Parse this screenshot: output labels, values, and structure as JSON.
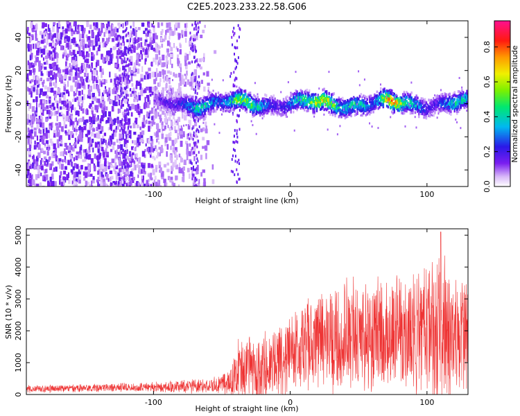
{
  "title": "C2E5.2023.233.22.58.G06",
  "chart_data": [
    {
      "type": "heatmap",
      "title": "C2E5.2023.233.22.58.G06",
      "xlabel": "Height of straight line (km)",
      "ylabel": "Frequency (Hz)",
      "xlim": [
        -193,
        130
      ],
      "ylim": [
        -50,
        50
      ],
      "xticks": [
        -100,
        0,
        100
      ],
      "xtick_labels": [
        "-100",
        "0",
        "100"
      ],
      "yticks": [
        -40,
        -20,
        0,
        20,
        40
      ],
      "ytick_labels": [
        "-40",
        "-20",
        "0",
        "20",
        "40"
      ],
      "colorbar": {
        "label": "Normalized spectral amplitude",
        "range": [
          0.0,
          0.95
        ],
        "ticks": [
          0.0,
          0.2,
          0.4,
          0.6,
          0.8
        ],
        "tick_labels": [
          "0.0",
          "0.2",
          "0.4",
          "0.6",
          "0.8"
        ],
        "colormap": "rainbow (white → violet → blue → cyan → green → yellow → orange → red → magenta)"
      },
      "features": [
        {
          "region": "x -193 to -100",
          "description": "broadband scattered noise across all frequencies, amplitude ~0.05-0.15"
        },
        {
          "region": "x -100 to 130",
          "description": "narrow signal band centered near 0 Hz, width ~±5 Hz, amplitude 0.3-0.95, peaks near x 20-30 and x 65-80"
        }
      ],
      "grid": false
    },
    {
      "type": "line",
      "xlabel": "Height of straight line (km)",
      "ylabel": "SNR (10 * v/v)",
      "xlim": [
        -193,
        130
      ],
      "ylim": [
        0,
        5200
      ],
      "xticks": [
        -100,
        0,
        100
      ],
      "xtick_labels": [
        "-100",
        "0",
        "100"
      ],
      "yticks": [
        0,
        1000,
        2000,
        3000,
        4000,
        5000
      ],
      "ytick_labels": [
        "0",
        "1000",
        "2000",
        "3000",
        "4000",
        "5000"
      ],
      "color": "#ee3333",
      "envelope": {
        "x": [
          -193,
          -150,
          -100,
          -80,
          -60,
          -45,
          -40,
          -30,
          -20,
          -10,
          0,
          10,
          20,
          40,
          60,
          80,
          100,
          110,
          120,
          130
        ],
        "mean": [
          170,
          200,
          230,
          260,
          280,
          380,
          650,
          850,
          880,
          1050,
          1250,
          1500,
          1650,
          1850,
          1850,
          1900,
          1950,
          1950,
          1950,
          1950
        ],
        "spread": [
          120,
          130,
          170,
          220,
          260,
          420,
          900,
          1100,
          1100,
          1200,
          1400,
          1600,
          1700,
          1900,
          1900,
          2000,
          2300,
          2600,
          2200,
          2000
        ]
      },
      "peak": {
        "x": 110,
        "y": 5100
      },
      "grid": false
    }
  ]
}
